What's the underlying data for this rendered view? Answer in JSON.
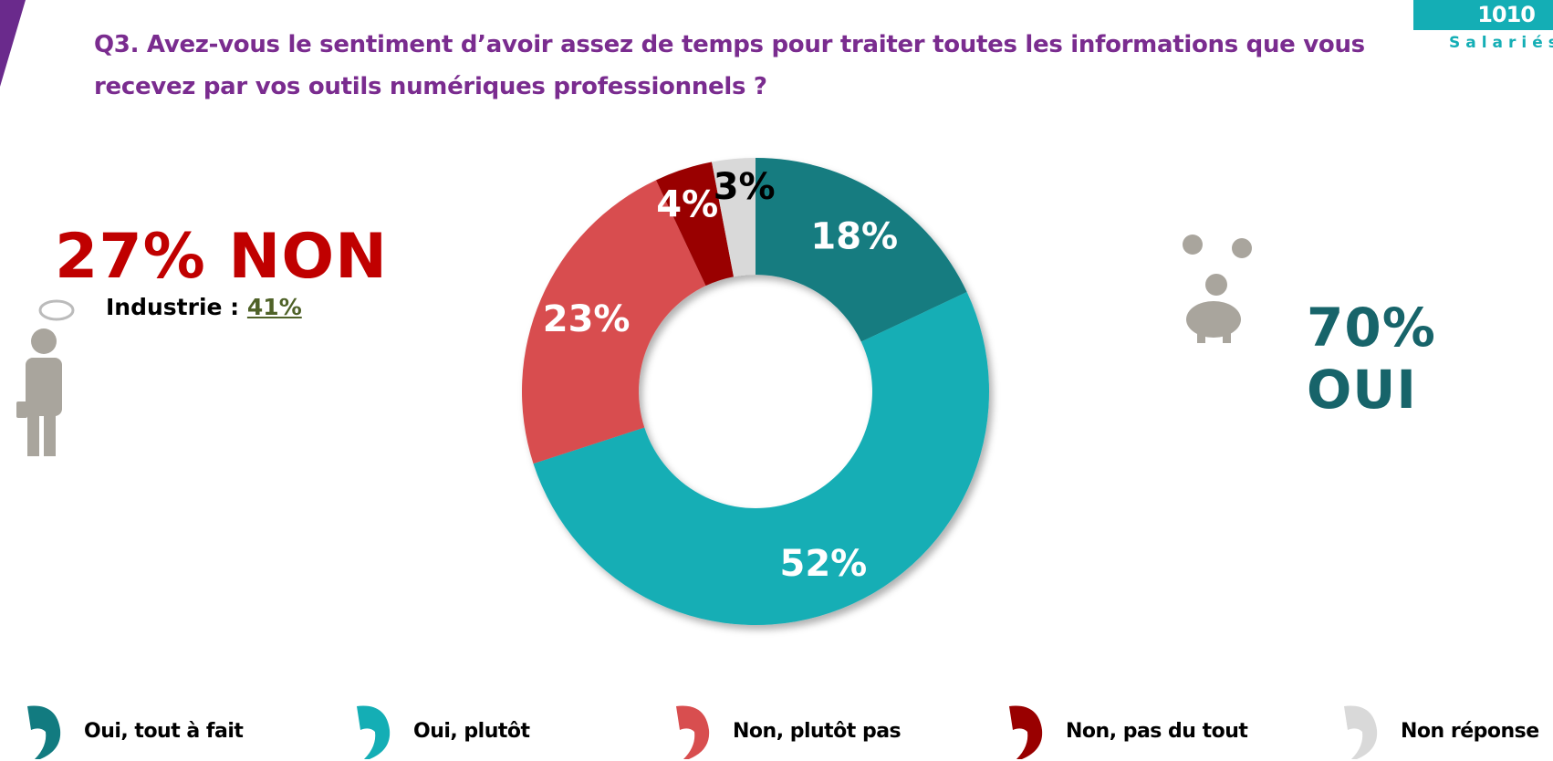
{
  "header": {
    "title": "Q3. Avez-vous le sentiment d’avoir assez de temps pour traiter toutes les informations que vous recevez par vos outils numériques professionnels  ?",
    "badge_number": "1010",
    "badge_label": "Salariés"
  },
  "summary": {
    "non_label": "27% NON",
    "industrie_label": "Industrie :",
    "industrie_value": "41%",
    "oui_label": "70% OUI"
  },
  "chart_data": {
    "type": "pie",
    "donut": true,
    "title": "Q3. Avez-vous le sentiment d’avoir assez de temps pour traiter toutes les informations que vous recevez par vos outils numériques professionnels  ?",
    "categories": [
      "Oui, tout à fait",
      "Oui, plutôt",
      "Non, plutôt pas",
      "Non, pas du tout",
      "Non réponse"
    ],
    "values": [
      18,
      52,
      23,
      4,
      3
    ],
    "labels": [
      "18%",
      "52%",
      "23%",
      "4%",
      "3%"
    ],
    "colors": [
      "#127b80",
      "#14aeb5",
      "#d84e4f",
      "#990000",
      "#d9d9d9"
    ],
    "label_colors": [
      "#ffffff",
      "#ffffff",
      "#ffffff",
      "#ffffff",
      "#000000"
    ],
    "legend_position": "bottom"
  }
}
